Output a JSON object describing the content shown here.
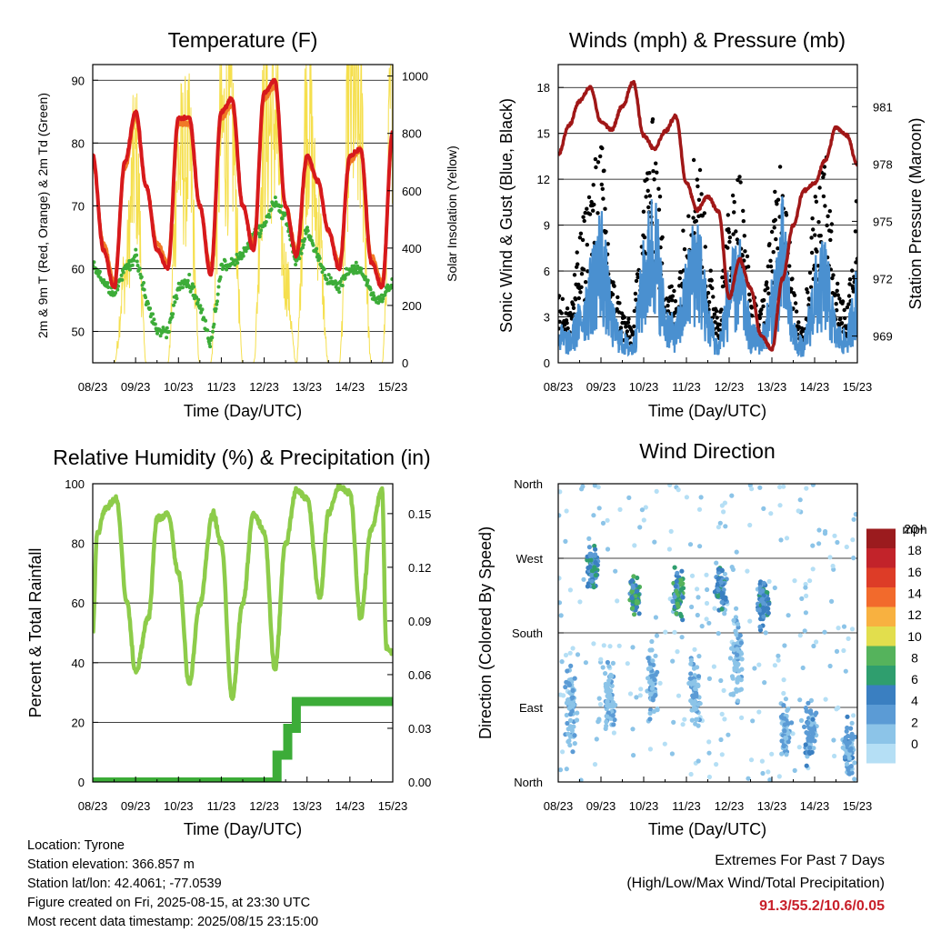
{
  "time_axis": {
    "ticks": [
      "08/23",
      "09/23",
      "10/23",
      "11/23",
      "12/23",
      "13/23",
      "14/23",
      "15/23"
    ],
    "label": "Time (Day/UTC)"
  },
  "colors": {
    "temp2m": "#d7191c",
    "temp9m": "#f07a26",
    "dewpoint": "#3cac38",
    "solar": "#f5df4d",
    "wind": "#4a90d0",
    "gust": "#000000",
    "pressure": "#a01717",
    "rh": "#8dcc4a",
    "precip": "#3cac38"
  },
  "wind_speed_colors": [
    "#b5dff5",
    "#8cc4e8",
    "#5b9bd5",
    "#3a7fc1",
    "#2f9e6e",
    "#55b35c",
    "#e2de4d",
    "#f8b140",
    "#f26a2c",
    "#dd3c27",
    "#c2232a",
    "#9b1b1e"
  ],
  "chart_data": [
    {
      "type": "line",
      "title": "Temperature (F)",
      "xlabel": "Time (Day/UTC)",
      "ylabel": "2m & 9m T (Red, Orange) & 2m Td (Green)",
      "y2label": "Solar Insolation (Yellow)",
      "ylim": [
        45,
        92.5
      ],
      "y2lim": [
        0,
        1040
      ],
      "yticks": [
        50,
        60,
        70,
        80,
        90
      ],
      "y2ticks": [
        0,
        200,
        400,
        600,
        800,
        1000
      ],
      "x": [
        0,
        0.25,
        0.5,
        0.75,
        1,
        1.25,
        1.5,
        1.75,
        2,
        2.25,
        2.5,
        2.75,
        3,
        3.25,
        3.5,
        3.75,
        4,
        4.25,
        4.5,
        4.75,
        5,
        5.25,
        5.5,
        5.75,
        6,
        6.25,
        6.5,
        6.75,
        7
      ],
      "series": [
        {
          "key": "t2m",
          "values": [
            78,
            63,
            57,
            77,
            85,
            73,
            63,
            60,
            84,
            84,
            70,
            59,
            85,
            87,
            70,
            63,
            88,
            90,
            70,
            62,
            78,
            74,
            66,
            60,
            78,
            79,
            61,
            57,
            82
          ]
        },
        {
          "key": "t9m",
          "values": [
            77,
            64,
            58,
            76,
            84,
            73,
            64,
            61,
            83,
            83,
            70,
            60,
            84,
            86,
            70,
            64,
            87,
            89,
            70,
            63,
            77,
            74,
            66,
            61,
            77,
            79,
            62,
            58,
            81
          ]
        },
        {
          "key": "td2m",
          "values": [
            61,
            58,
            56,
            60,
            62,
            55,
            50,
            50,
            57,
            58,
            54,
            48,
            60,
            61,
            62,
            65,
            67,
            71,
            68,
            61,
            66,
            62,
            58,
            57,
            60,
            60,
            56,
            55,
            58
          ]
        },
        {
          "key": "solar",
          "values": [
            0,
            0,
            0,
            300,
            700,
            0,
            0,
            0,
            700,
            700,
            0,
            0,
            800,
            800,
            0,
            0,
            800,
            850,
            300,
            0,
            900,
            500,
            0,
            0,
            900,
            800,
            0,
            0,
            1000
          ]
        }
      ]
    },
    {
      "type": "scatter",
      "title": "Winds (mph) & Pressure (mb)",
      "xlabel": "Time (Day/UTC)",
      "ylabel": "Sonic Wind & Gust (Blue, Black)",
      "y2label": "Station Pressure (Maroon)",
      "ylim": [
        0,
        19.5
      ],
      "y2lim": [
        967.6,
        983.2
      ],
      "yticks": [
        0,
        3,
        6,
        9,
        12,
        15,
        18
      ],
      "y2ticks": [
        969,
        972,
        975,
        978,
        981
      ],
      "x": [
        0,
        0.25,
        0.5,
        0.75,
        1,
        1.25,
        1.5,
        1.75,
        2,
        2.25,
        2.5,
        2.75,
        3,
        3.25,
        3.5,
        3.75,
        4,
        4.25,
        4.5,
        4.75,
        5,
        5.25,
        5.5,
        5.75,
        6,
        6.25,
        6.5,
        6.75,
        7
      ],
      "series": [
        {
          "key": "wind",
          "values": [
            2,
            1.5,
            3,
            5,
            8,
            3,
            1.5,
            1,
            6,
            9,
            3,
            2,
            5,
            8,
            3,
            1,
            5,
            6,
            2,
            1.5,
            4,
            8,
            2,
            1,
            5,
            6,
            2,
            1.5,
            5
          ]
        },
        {
          "key": "gust",
          "values": [
            4,
            3,
            7,
            10,
            13,
            5,
            3,
            2,
            10,
            14,
            5,
            4,
            9,
            13,
            6,
            3,
            9,
            11,
            4,
            3,
            8,
            13,
            4,
            2,
            10,
            12,
            5,
            3,
            10
          ]
        },
        {
          "key": "pressure",
          "values": [
            978.5,
            980,
            981.3,
            982,
            980.2,
            979.8,
            981,
            982.3,
            979.5,
            978.8,
            979.7,
            980.5,
            977,
            975.6,
            976.3,
            975.5,
            971,
            973,
            971.5,
            969,
            968.3,
            972,
            974.8,
            976.6,
            977,
            978.2,
            979.9,
            979.5,
            978
          ]
        }
      ]
    },
    {
      "type": "line",
      "title": "Relative Humidity (%) & Precipitation (in)",
      "xlabel": "Time (Day/UTC)",
      "ylabel": "Percent & Total Rainfall",
      "ylim": [
        0,
        100
      ],
      "y2lim": [
        0,
        0.1667
      ],
      "yticks": [
        0,
        20,
        40,
        60,
        80,
        100
      ],
      "y2ticks": [
        "0.00",
        "0.03",
        "0.06",
        "0.09",
        "0.12",
        "0.15"
      ],
      "x_rh": [
        0,
        0.1,
        0.3,
        0.55,
        0.8,
        1,
        1.3,
        1.5,
        1.75,
        2,
        2.25,
        2.5,
        2.8,
        3,
        3.25,
        3.5,
        3.75,
        4,
        4.25,
        4.5,
        4.75,
        5,
        5.3,
        5.5,
        5.75,
        6,
        6.25,
        6.5,
        6.75,
        6.85,
        7
      ],
      "rh": [
        50,
        83,
        92,
        95,
        60,
        37,
        55,
        88,
        90,
        70,
        33,
        60,
        90,
        80,
        28,
        60,
        90,
        84,
        38,
        80,
        98,
        95,
        62,
        90,
        99,
        97,
        55,
        85,
        98,
        45,
        43
      ],
      "x_precip": [
        0,
        4.3,
        4.3,
        4.55,
        4.55,
        4.75,
        4.75,
        7
      ],
      "precip": [
        0,
        0,
        0.015,
        0.015,
        0.03,
        0.03,
        0.045,
        0.045
      ]
    },
    {
      "type": "scatter",
      "title": "Wind Direction",
      "xlabel": "Time (Day/UTC)",
      "ylabel": "Direction (Colored By Speed)",
      "ylim": [
        0,
        360
      ],
      "yticks": [
        "North",
        "East",
        "South",
        "West",
        "North"
      ],
      "legend_title": "mph",
      "legend_labels": [
        "0",
        "2",
        "4",
        "6",
        "8",
        "10",
        "12",
        "14",
        "16",
        "18",
        "20+"
      ],
      "clusters": [
        {
          "day": 0.3,
          "dir": 90,
          "spread": 70,
          "speed": 2
        },
        {
          "day": 0.8,
          "dir": 260,
          "spread": 40,
          "speed": 5
        },
        {
          "day": 1.2,
          "dir": 100,
          "spread": 60,
          "speed": 2
        },
        {
          "day": 1.8,
          "dir": 225,
          "spread": 30,
          "speed": 7
        },
        {
          "day": 2.2,
          "dir": 120,
          "spread": 60,
          "speed": 2
        },
        {
          "day": 2.8,
          "dir": 230,
          "spread": 40,
          "speed": 7
        },
        {
          "day": 3.2,
          "dir": 110,
          "spread": 60,
          "speed": 2
        },
        {
          "day": 3.8,
          "dir": 235,
          "spread": 35,
          "speed": 5
        },
        {
          "day": 4.2,
          "dir": 150,
          "spread": 70,
          "speed": 2
        },
        {
          "day": 4.8,
          "dir": 220,
          "spread": 40,
          "speed": 5
        },
        {
          "day": 5.3,
          "dir": 60,
          "spread": 50,
          "speed": 2
        },
        {
          "day": 5.9,
          "dir": 60,
          "spread": 55,
          "speed": 3
        },
        {
          "day": 6.8,
          "dir": 40,
          "spread": 50,
          "speed": 3
        }
      ]
    }
  ],
  "info": {
    "location": "Location: Tyrone",
    "elevation": "Station elevation: 366.857 m",
    "latlon": "Station lat/lon: 42.4061; -77.0539",
    "created": "Figure created on Fri, 2025-08-15, at 23:30 UTC",
    "timestamp": "Most recent data timestamp: 2025/08/15 23:15:00"
  },
  "extremes": {
    "title": "Extremes For Past 7 Days",
    "subtitle": "(High/Low/Max Wind/Total Precipitation)",
    "values": "91.3/55.2/10.6/0.05"
  }
}
